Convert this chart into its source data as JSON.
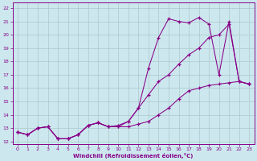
{
  "xlabel": "Windchill (Refroidissement éolien,°C)",
  "background_color": "#cce8ee",
  "line_color": "#880088",
  "grid_color": "#aac8cc",
  "xlim": [
    -0.5,
    23.5
  ],
  "ylim": [
    11.8,
    22.4
  ],
  "yticks": [
    12,
    13,
    14,
    15,
    16,
    17,
    18,
    19,
    20,
    21,
    22
  ],
  "xticks": [
    0,
    1,
    2,
    3,
    4,
    5,
    6,
    7,
    8,
    9,
    10,
    11,
    12,
    13,
    14,
    15,
    16,
    17,
    18,
    19,
    20,
    21,
    22,
    23
  ],
  "line1_x": [
    0,
    1,
    2,
    3,
    4,
    5,
    6,
    7,
    8,
    9,
    10,
    11,
    12,
    13,
    14,
    15,
    16,
    17,
    18,
    19,
    20,
    21,
    22,
    23
  ],
  "line1_y": [
    12.7,
    12.5,
    13.0,
    13.1,
    12.2,
    12.2,
    12.5,
    13.2,
    13.4,
    13.1,
    13.1,
    13.5,
    14.5,
    17.5,
    19.8,
    21.2,
    21.0,
    20.9,
    21.3,
    20.8,
    17.0,
    21.0,
    16.5,
    16.3
  ],
  "line2_x": [
    0,
    1,
    2,
    3,
    4,
    5,
    6,
    7,
    8,
    9,
    10,
    11,
    12,
    13,
    14,
    15,
    16,
    17,
    18,
    19,
    20,
    21,
    22,
    23
  ],
  "line2_y": [
    12.7,
    12.5,
    13.0,
    13.1,
    12.2,
    12.2,
    12.5,
    13.2,
    13.4,
    13.1,
    13.2,
    13.5,
    14.5,
    15.5,
    16.5,
    17.0,
    17.8,
    18.5,
    19.0,
    19.8,
    20.0,
    20.8,
    16.5,
    16.3
  ],
  "line3_x": [
    0,
    1,
    2,
    3,
    4,
    5,
    6,
    7,
    8,
    9,
    10,
    11,
    12,
    13,
    14,
    15,
    16,
    17,
    18,
    19,
    20,
    21,
    22,
    23
  ],
  "line3_y": [
    12.7,
    12.5,
    13.0,
    13.1,
    12.2,
    12.2,
    12.5,
    13.2,
    13.4,
    13.1,
    13.1,
    13.1,
    13.3,
    13.5,
    14.0,
    14.5,
    15.2,
    15.8,
    16.0,
    16.2,
    16.3,
    16.4,
    16.5,
    16.3
  ]
}
